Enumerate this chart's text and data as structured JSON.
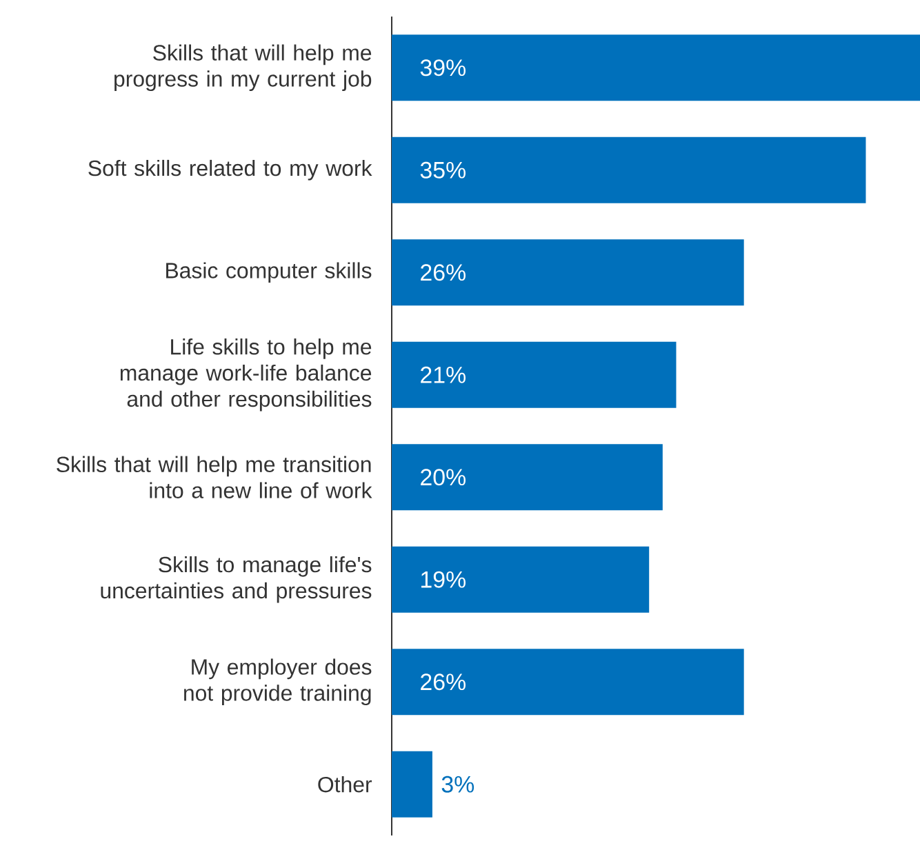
{
  "chart_data": {
    "type": "bar",
    "orientation": "horizontal",
    "color": "#0070bb",
    "categories": [
      "Skills that will help me progress in my current job",
      "Soft skills related to my work",
      "Basic computer skills",
      "Life skills to help me manage work-life balance and other responsibilities",
      "Skills that will help me transition into a new line of work",
      "Skills to manage life's uncertainties and pressures",
      "My employer does not provide training",
      "Other"
    ],
    "values": [
      39,
      35,
      26,
      21,
      20,
      19,
      26,
      3
    ],
    "value_labels": [
      "39%",
      "35%",
      "26%",
      "21%",
      "20%",
      "19%",
      "26%",
      "3%"
    ]
  }
}
